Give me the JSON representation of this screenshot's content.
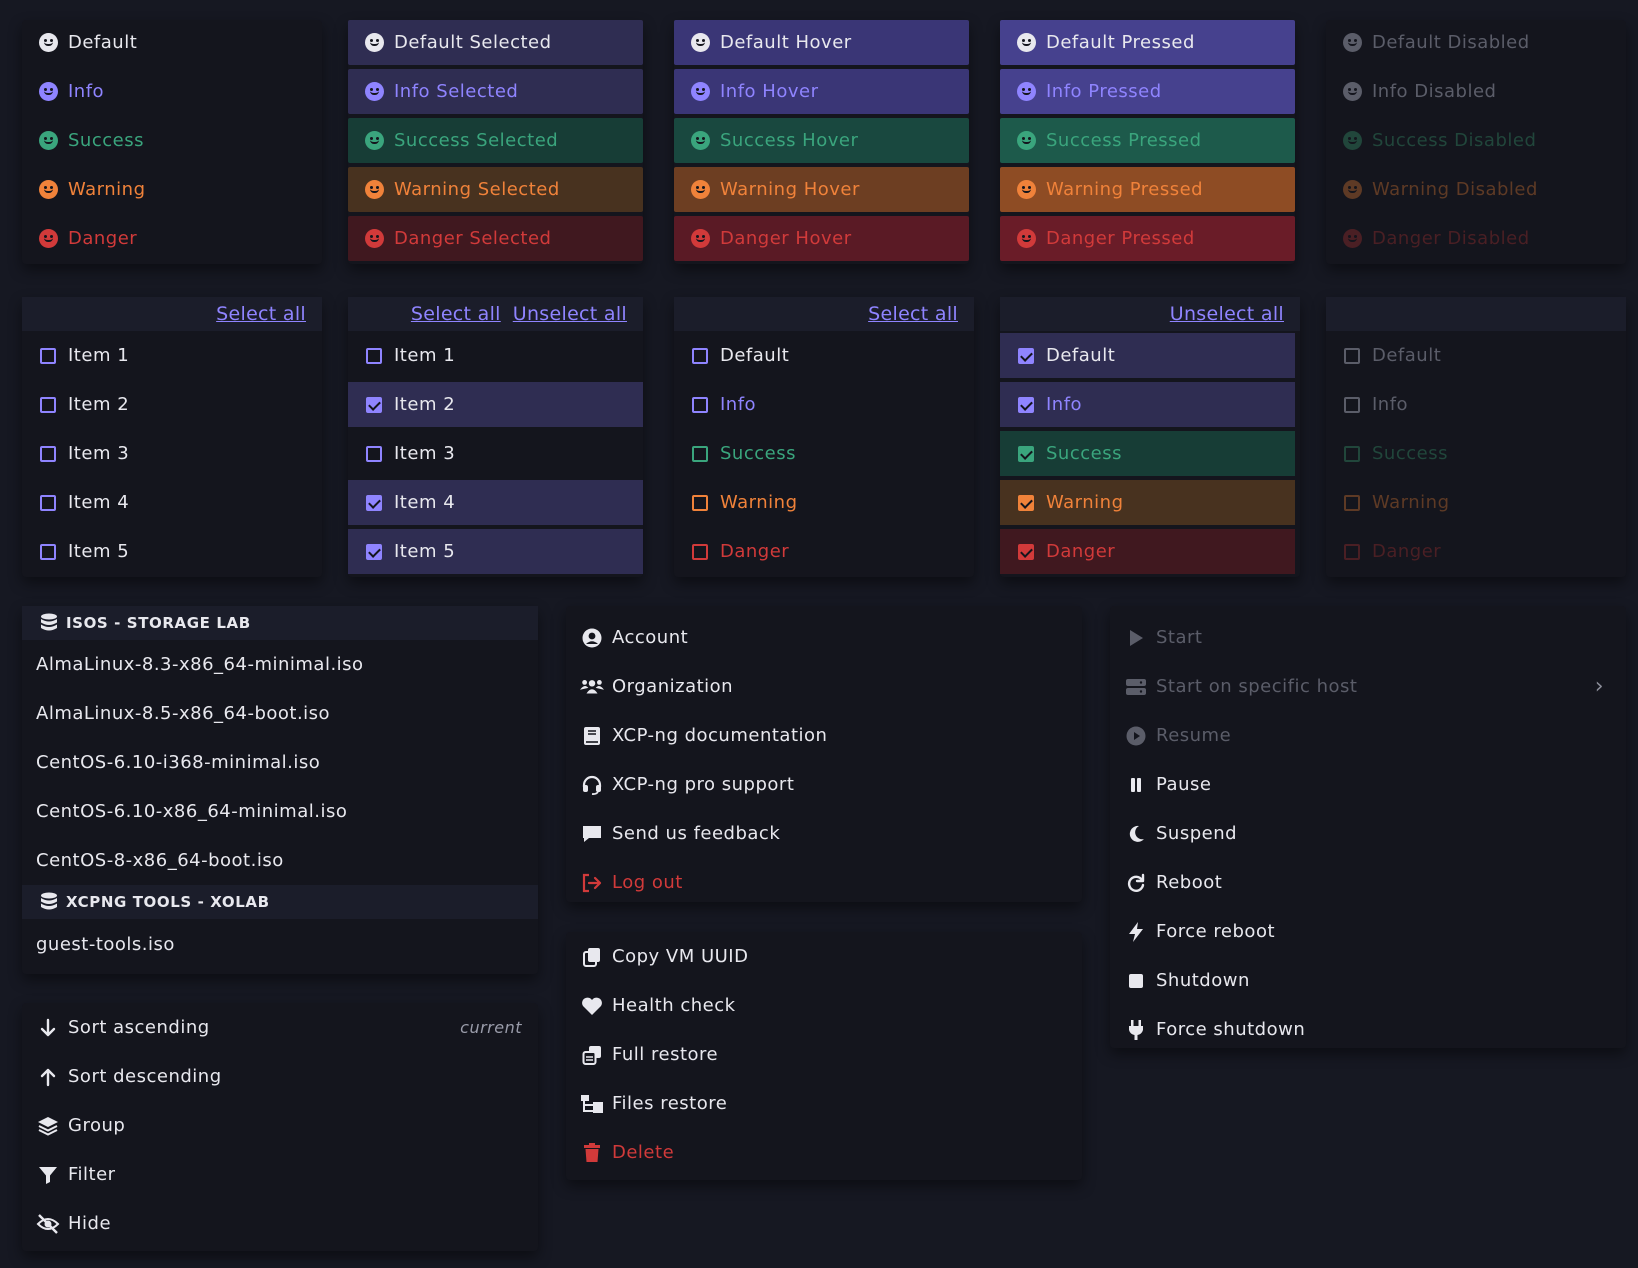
{
  "state_columns": [
    {
      "rows": [
        "Default",
        "Info",
        "Success",
        "Warning",
        "Danger"
      ]
    },
    {
      "rows": [
        "Default Selected",
        "Info Selected",
        "Success Selected",
        "Warning Selected",
        "Danger Selected"
      ]
    },
    {
      "rows": [
        "Default Hover",
        "Info Hover",
        "Success Hover",
        "Warning Hover",
        "Danger Hover"
      ]
    },
    {
      "rows": [
        "Default Pressed",
        "Info Pressed",
        "Success Pressed",
        "Warning Pressed",
        "Danger Pressed"
      ]
    },
    {
      "rows": [
        "Default Disabled",
        "Info Disabled",
        "Success Disabled",
        "Warning Disabled",
        "Danger Disabled"
      ]
    }
  ],
  "checkbox_panels": [
    {
      "links": [
        "Select all"
      ],
      "items": [
        "Item 1",
        "Item 2",
        "Item 3",
        "Item 4",
        "Item 5"
      ]
    },
    {
      "links": [
        "Select all",
        "Unselect all"
      ],
      "items": [
        "Item 1",
        "Item 2",
        "Item 3",
        "Item 4",
        "Item 5"
      ]
    },
    {
      "links": [
        "Select all"
      ],
      "items": [
        "Default",
        "Info",
        "Success",
        "Warning",
        "Danger"
      ]
    },
    {
      "links": [
        "Unselect all"
      ],
      "items": [
        "Default",
        "Info",
        "Success",
        "Warning",
        "Danger"
      ]
    },
    {
      "links": [],
      "items": [
        "Default",
        "Info",
        "Success",
        "Warning",
        "Danger"
      ]
    }
  ],
  "iso_menu": {
    "groups": [
      {
        "title": "ISOS - STORAGE LAB",
        "items": [
          "AlmaLinux-8.3-x86_64-minimal.iso",
          "AlmaLinux-8.5-x86_64-boot.iso",
          "CentOS-6.10-i368-minimal.iso",
          "CentOS-6.10-x86_64-minimal.iso",
          "CentOS-8-x86_64-boot.iso"
        ]
      },
      {
        "title": "XCPNG TOOLS - XOLAB",
        "items": [
          "guest-tools.iso"
        ]
      }
    ]
  },
  "sort_menu": {
    "items": [
      "Sort ascending",
      "Sort descending",
      "Group",
      "Filter",
      "Hide"
    ],
    "current_label": "current"
  },
  "account_menu": {
    "items": [
      "Account",
      "Organization",
      "XCP-ng documentation",
      "XCP-ng pro support",
      "Send us feedback",
      "Log out"
    ]
  },
  "vm_menu": {
    "items": [
      "Copy VM UUID",
      "Health check",
      "Full restore",
      "Files restore",
      "Delete"
    ]
  },
  "power_menu": {
    "items": [
      "Start",
      "Start on specific host",
      "Resume",
      "Pause",
      "Suspend",
      "Reboot",
      "Force reboot",
      "Shutdown",
      "Force shutdown"
    ]
  },
  "colors": {
    "info": "#8f84ff",
    "success": "#3aa57d",
    "warning": "#f0823a",
    "danger": "#d13a3a"
  }
}
